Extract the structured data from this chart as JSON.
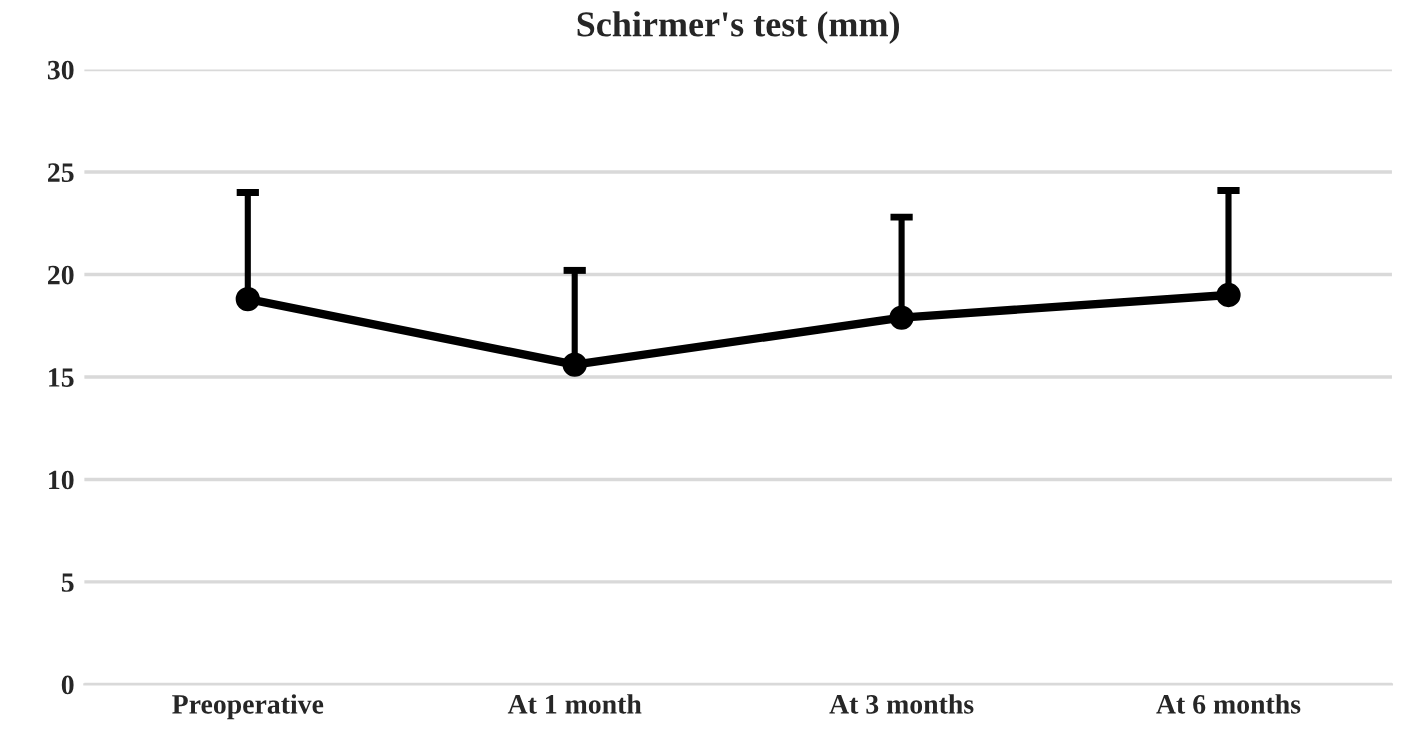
{
  "chart_data": {
    "type": "line",
    "title": "Schirmer's test (mm)",
    "categories": [
      "Preoperative",
      "At 1 month",
      "At 3 months",
      "At 6 months"
    ],
    "color": "#000000",
    "values": [
      18.8,
      15.6,
      17.9,
      19.0
    ],
    "errors": [
      [
        18.8,
        24.0
      ],
      [
        15.6,
        20.2
      ],
      [
        17.9,
        22.8
      ],
      [
        19.0,
        24.1
      ]
    ],
    "ylim": [
      0,
      30
    ],
    "yticks": [
      0,
      5,
      10,
      15,
      20,
      25,
      30
    ],
    "grid": "y",
    "marker": "circle",
    "line_style": "solid"
  }
}
